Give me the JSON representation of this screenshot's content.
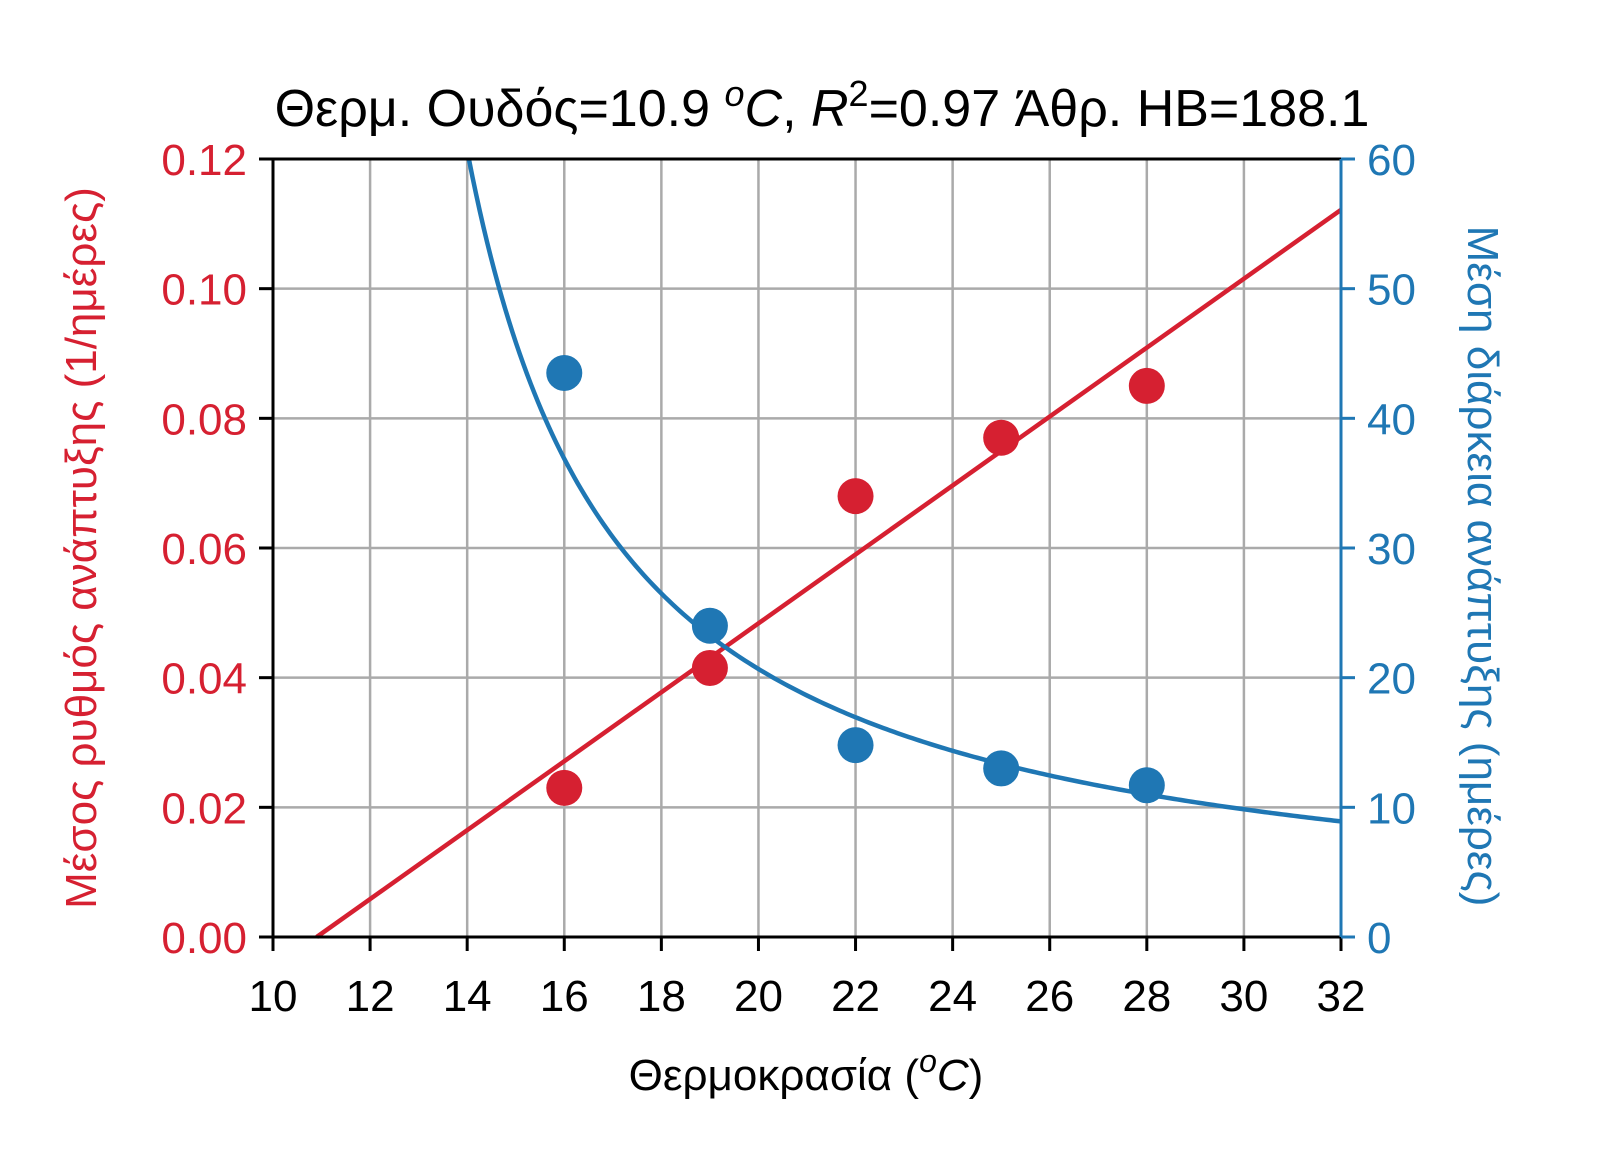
{
  "chart_data": {
    "type": "scatter",
    "title": {
      "prefix": "Θερμ. Ουδός=10.9 ",
      "unit_sup": "o",
      "unit": "C",
      "sep": ", ",
      "r_symbol": "R",
      "r_sup": "2",
      "suffix": "=0.97 Άθρ. HB=188.1"
    },
    "xlabel": {
      "prefix": "Θερμοκρασία (",
      "sup": "o",
      "unit": "C",
      "suffix": ")"
    },
    "ylabel_left": "Μέσος ρυθμός ανάπτυξης (1/ημέρες)",
    "ylabel_right": "Μέση διάρκεια ανάπτυξης (ημέρες)",
    "xlim": [
      10,
      32
    ],
    "ylim_left": [
      0,
      0.12
    ],
    "ylim_right": [
      0,
      60
    ],
    "x_ticks": [
      "10",
      "12",
      "14",
      "16",
      "18",
      "20",
      "22",
      "24",
      "26",
      "28",
      "30",
      "32"
    ],
    "y_left_ticks": [
      "0.00",
      "0.02",
      "0.04",
      "0.06",
      "0.08",
      "0.10",
      "0.12"
    ],
    "y_right_ticks": [
      "0",
      "10",
      "20",
      "30",
      "40",
      "50",
      "60"
    ],
    "grid": true,
    "colors": {
      "rate": "#d62031",
      "duration": "#1f77b4",
      "grid": "#aaaaaa",
      "axis": "#000000"
    },
    "series": [
      {
        "axis": "left",
        "points": [
          {
            "x": 16,
            "y": 0.023
          },
          {
            "x": 19,
            "y": 0.0415
          },
          {
            "x": 22,
            "y": 0.068
          },
          {
            "x": 25,
            "y": 0.077
          },
          {
            "x": 28,
            "y": 0.085
          }
        ],
        "fit": {
          "kind": "linear",
          "threshold": 10.9,
          "slope": 0.005316
        }
      },
      {
        "axis": "right",
        "points": [
          {
            "x": 16,
            "y": 43.5
          },
          {
            "x": 19,
            "y": 24
          },
          {
            "x": 22,
            "y": 14.8
          },
          {
            "x": 25,
            "y": 13
          },
          {
            "x": 28,
            "y": 11.7
          }
        ],
        "fit": {
          "kind": "hyperbolic",
          "threshold": 10.9,
          "dd": 188.1
        }
      }
    ]
  }
}
